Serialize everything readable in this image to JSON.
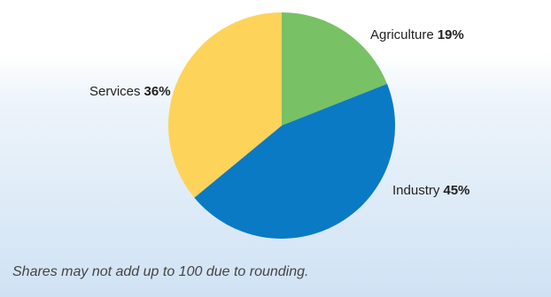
{
  "chart_data": {
    "type": "pie",
    "slices": [
      {
        "label": "Agriculture",
        "pct_text": "19%",
        "value": 19,
        "color": "#78c164"
      },
      {
        "label": "Industry",
        "pct_text": "45%",
        "value": 45,
        "color": "#0a7ac4"
      },
      {
        "label": "Services",
        "pct_text": "36%",
        "value": 36,
        "color": "#fdd35a"
      }
    ],
    "start": "12 o'clock, clockwise"
  },
  "footnote": "Shares may not add up to 100 due to rounding."
}
